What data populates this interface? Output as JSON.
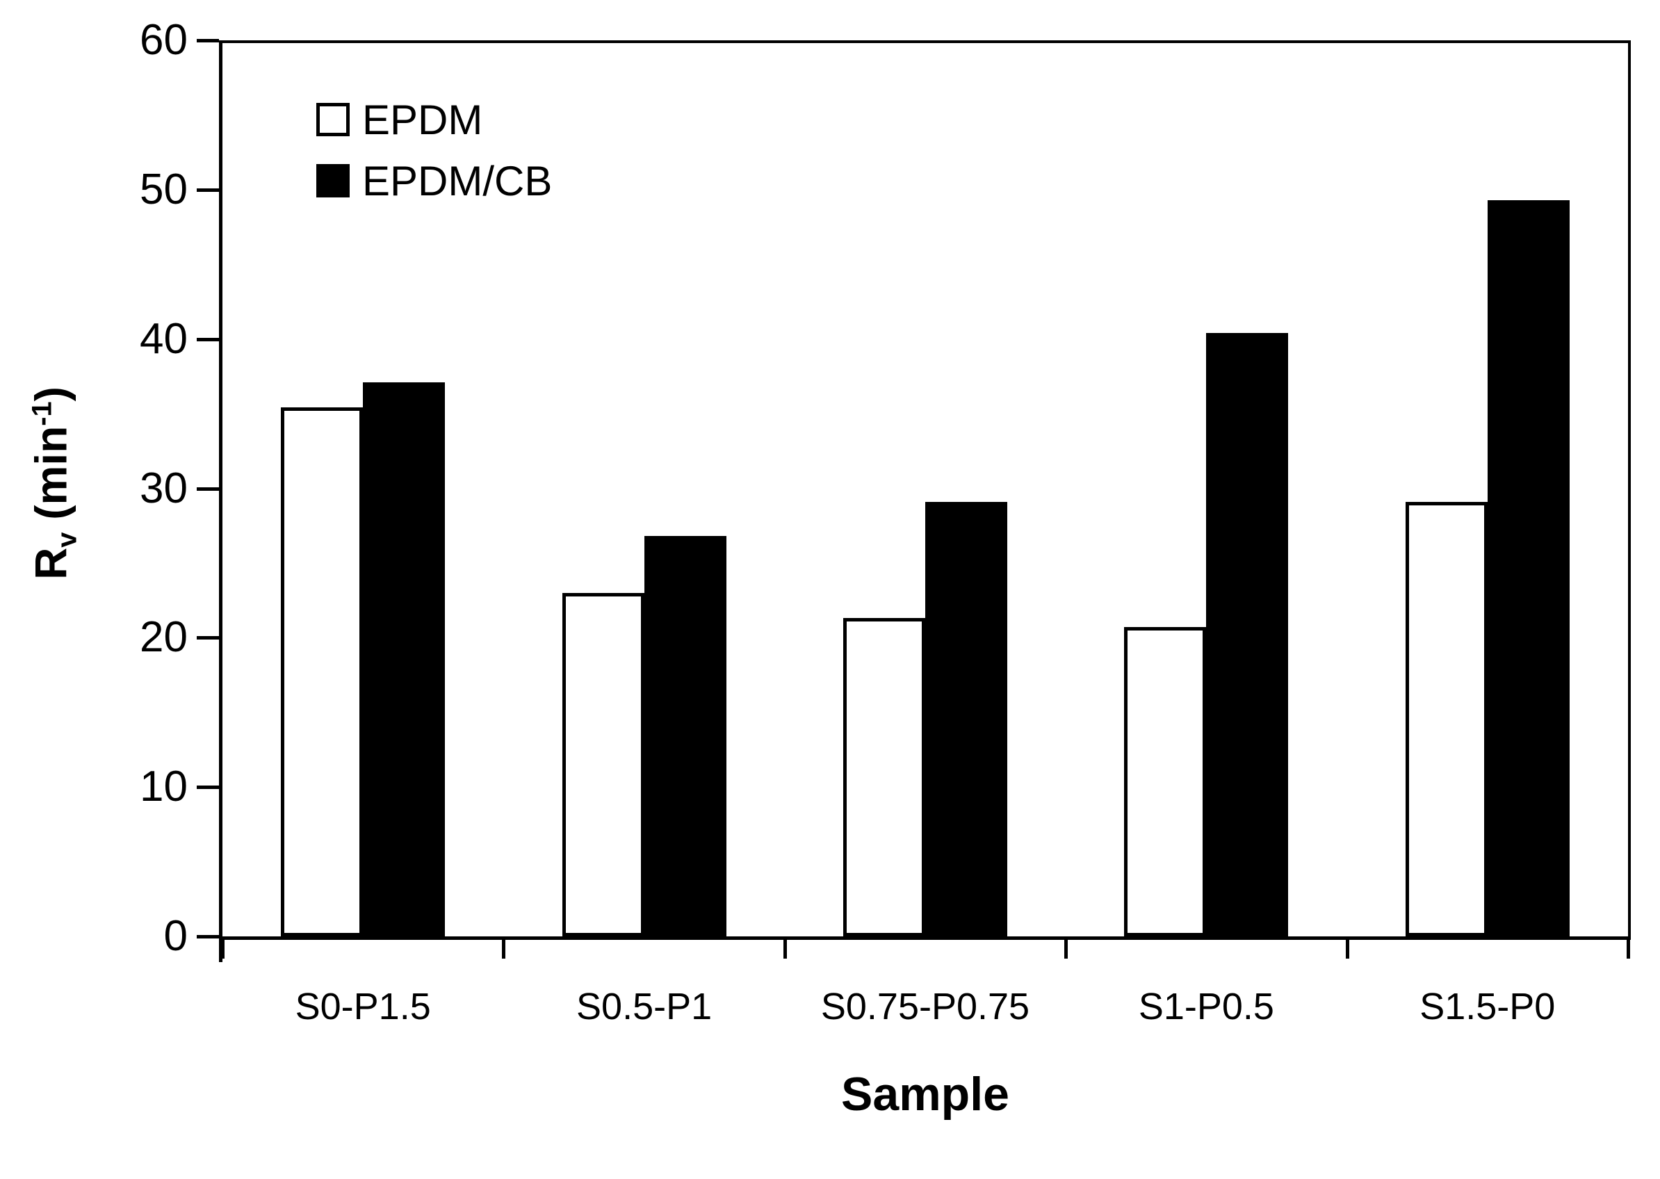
{
  "chart_data": {
    "type": "bar",
    "title": "",
    "xlabel": "Sample",
    "ylabel": {
      "symbol": "R",
      "symbol_sub": "v",
      "unit_open": " (min",
      "unit_exp": "-1",
      "unit_close": ")"
    },
    "categories": [
      "S0-P1.5",
      "S0.5-P1",
      "S0.75-P0.75",
      "S1-P0.5",
      "S1.5-P0"
    ],
    "series": [
      {
        "name": "EPDM",
        "style": "outlined",
        "fill": "#ffffff",
        "border": "#000000",
        "values": [
          35.4,
          23.0,
          21.3,
          20.7,
          29.1
        ]
      },
      {
        "name": "EPDM/CB",
        "style": "filled",
        "fill": "#000000",
        "border": "#000000",
        "values": [
          37.1,
          26.8,
          29.1,
          40.4,
          49.3
        ]
      }
    ],
    "ylim": [
      0,
      60
    ],
    "yticks": [
      0,
      10,
      20,
      30,
      40,
      50,
      60
    ],
    "grid": false,
    "legend_position": "top-left-inside",
    "colors": {
      "axis": "#000000",
      "background": "#ffffff",
      "text": "#000000"
    }
  }
}
